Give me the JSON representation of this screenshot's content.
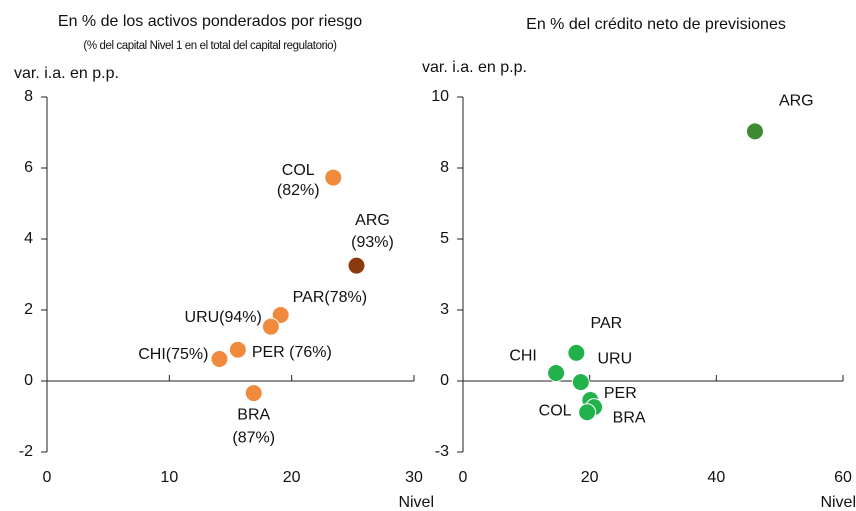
{
  "chart_data": [
    {
      "type": "scatter",
      "title": "En % de los activos ponderados por riesgo",
      "subtitle": "(% del capital Nivel 1 en el total del capital regulatorio)",
      "ylabel": "var. i.a. en p.p.",
      "xlabel": "Nivel",
      "xlim": [
        0,
        30
      ],
      "xticks": [
        0,
        10,
        20,
        30
      ],
      "ylim": [
        -2,
        8
      ],
      "yticks": [
        -2,
        0,
        2,
        4,
        6,
        8
      ],
      "labels": [
        [
          "COL",
          "(82%)"
        ],
        [
          "ARG",
          "(93%)"
        ],
        [
          "PAR(78%)"
        ],
        [
          "URU(94%)"
        ],
        [
          "PER (76%)"
        ],
        [
          "CHI(75%)"
        ],
        [
          "BRA",
          "(87%)"
        ]
      ],
      "x": [
        23.4,
        25.3,
        19.1,
        18.3,
        15.6,
        14.1,
        16.9
      ],
      "values": [
        5.73,
        3.25,
        1.86,
        1.53,
        0.88,
        0.62,
        -0.34
      ],
      "colors": [
        "#f08a3c",
        "#8b3a0e",
        "#f08a3c",
        "#f08a3c",
        "#f08a3c",
        "#f08a3c",
        "#f08a3c"
      ]
    },
    {
      "type": "scatter",
      "title": "En % del crédito neto de previsiones",
      "ylabel": "var. i.a. en p.p.",
      "xlabel": "Nivel",
      "xlim": [
        0,
        60
      ],
      "xticks": [
        0,
        20,
        40,
        60
      ],
      "ylim": [
        -2.5,
        10
      ],
      "yticks": [
        {
          "value": -2.5,
          "label": "-3"
        },
        0,
        {
          "value": 2.5,
          "label": "3"
        },
        5,
        {
          "value": 7.5,
          "label": "8"
        },
        10
      ],
      "labels": [
        [
          "ARG"
        ],
        [
          "PAR"
        ],
        [
          "CHI"
        ],
        [
          "URU"
        ],
        [
          "PER"
        ],
        [
          "BRA"
        ],
        [
          "COL"
        ]
      ],
      "x": [
        46.1,
        17.9,
        14.7,
        18.6,
        20.1,
        20.7,
        19.6
      ],
      "values": [
        8.79,
        0.99,
        0.28,
        -0.04,
        -0.67,
        -0.92,
        -1.1
      ],
      "colors": [
        "#3f8a34",
        "#22b24c",
        "#22b24c",
        "#22b24c",
        "#22b24c",
        "#22b24c",
        "#22b24c"
      ]
    }
  ]
}
